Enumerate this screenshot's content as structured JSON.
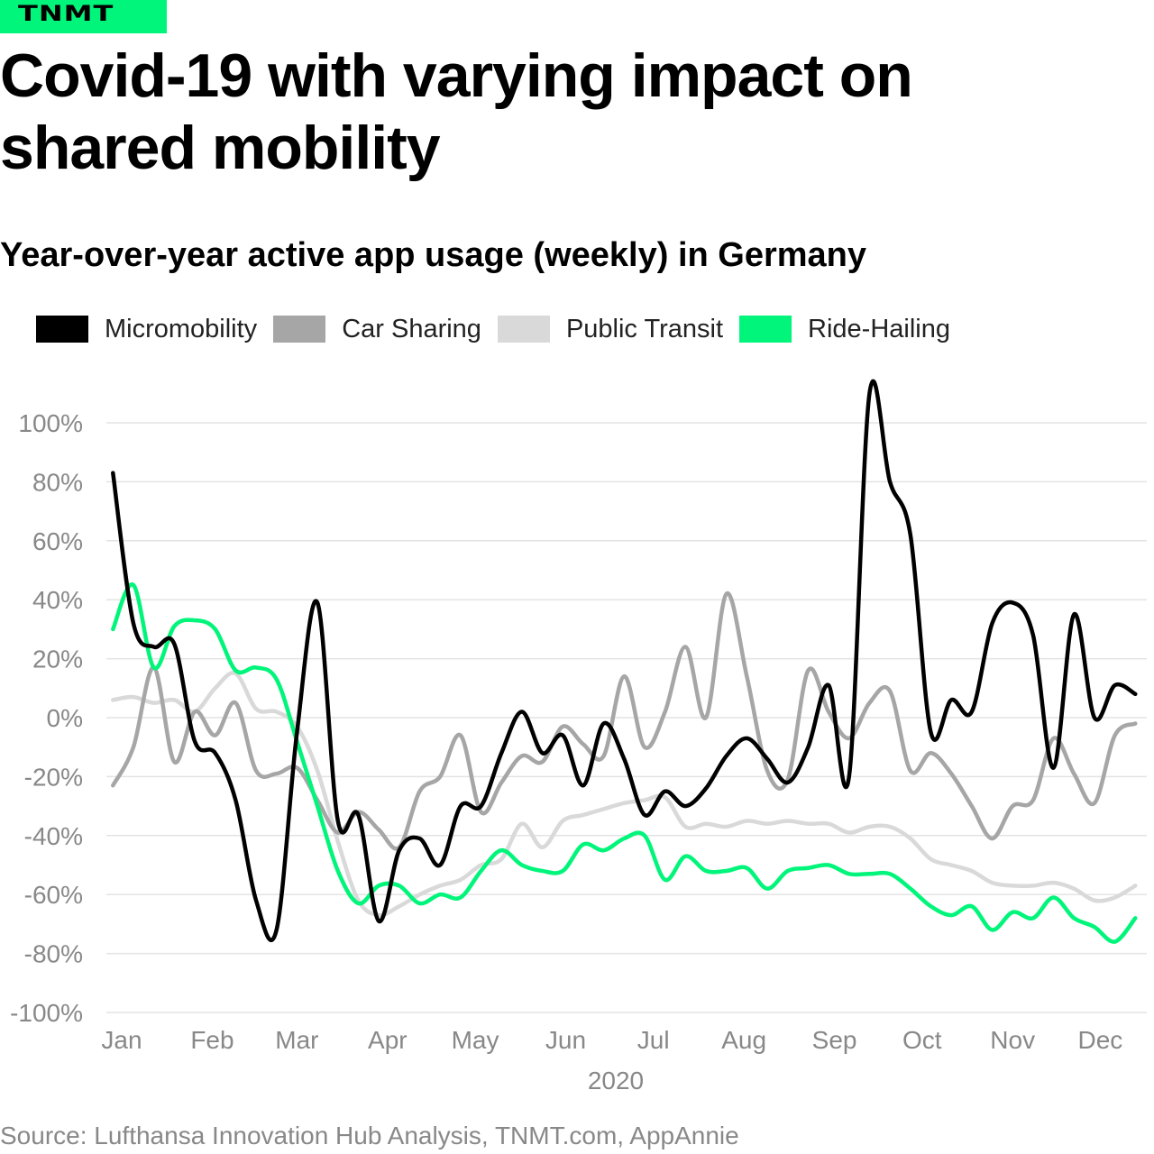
{
  "brand": {
    "logo_text": "TNMT",
    "color": "#00f57a"
  },
  "title": "Covid-19 with varying impact on shared mobility",
  "source": "Source: Lufthansa Innovation Hub Analysis, TNMT.com, AppAnnie",
  "chart_data": {
    "type": "line",
    "title": "Year-over-year active app usage (weekly) in Germany",
    "xlabel": "2020",
    "ylabel": "",
    "ylim": [
      -100,
      100
    ],
    "y_ticks": [
      "100%",
      "80%",
      "60%",
      "40%",
      "20%",
      "0%",
      "-20%",
      "-40%",
      "-60%",
      "-80%",
      "-100%"
    ],
    "y_tick_values": [
      100,
      80,
      60,
      40,
      20,
      0,
      -20,
      -40,
      -60,
      -80,
      -100
    ],
    "x_ticks": [
      "Jan",
      "Feb",
      "Mar",
      "Apr",
      "May",
      "Jun",
      "Jul",
      "Aug",
      "Sep",
      "Oct",
      "Nov",
      "Dec"
    ],
    "x_tick_dates": [
      "2020-01-01",
      "2020-02-01",
      "2020-03-01",
      "2020-04-01",
      "2020-05-01",
      "2020-06-01",
      "2020-07-01",
      "2020-08-01",
      "2020-09-01",
      "2020-10-01",
      "2020-11-01",
      "2020-12-01"
    ],
    "grid": "horizontal",
    "legend_position": "top-left",
    "x": [
      "2019-12-29",
      "2020-01-05",
      "2020-01-12",
      "2020-01-19",
      "2020-01-26",
      "2020-02-02",
      "2020-02-09",
      "2020-02-16",
      "2020-02-23",
      "2020-03-01",
      "2020-03-08",
      "2020-03-15",
      "2020-03-22",
      "2020-03-29",
      "2020-04-05",
      "2020-04-12",
      "2020-04-19",
      "2020-04-26",
      "2020-05-03",
      "2020-05-10",
      "2020-05-17",
      "2020-05-24",
      "2020-05-31",
      "2020-06-07",
      "2020-06-14",
      "2020-06-21",
      "2020-06-28",
      "2020-07-05",
      "2020-07-12",
      "2020-07-19",
      "2020-07-26",
      "2020-08-02",
      "2020-08-09",
      "2020-08-16",
      "2020-08-23",
      "2020-08-30",
      "2020-09-06",
      "2020-09-13",
      "2020-09-20",
      "2020-09-27",
      "2020-10-04",
      "2020-10-11",
      "2020-10-18",
      "2020-10-25",
      "2020-11-01",
      "2020-11-08",
      "2020-11-15",
      "2020-11-22",
      "2020-11-29",
      "2020-12-06",
      "2020-12-13"
    ],
    "series": [
      {
        "name": "Public Transit",
        "color": "#d9d9d9",
        "values": [
          6,
          7,
          5,
          6,
          2,
          10,
          15,
          3,
          2,
          -3,
          -18,
          -42,
          -62,
          -67,
          -64,
          -60,
          -57,
          -55,
          -50,
          -48,
          -36,
          -44,
          -35,
          -33,
          -31,
          -29,
          -28,
          -27,
          -37,
          -36,
          -37,
          -35,
          -36,
          -35,
          -36,
          -36,
          -39,
          -37,
          -37,
          -41,
          -48,
          -50,
          -52,
          -56,
          -57,
          -57,
          -56,
          -58,
          -62,
          -61,
          -57
        ]
      },
      {
        "name": "Car Sharing",
        "color": "#a6a6a6",
        "values": [
          -23,
          -10,
          17,
          -15,
          2,
          -6,
          5,
          -18,
          -19,
          -17,
          -28,
          -39,
          -32,
          -38,
          -44,
          -25,
          -20,
          -6,
          -32,
          -22,
          -13,
          -15,
          -3,
          -9,
          -13,
          14,
          -10,
          2,
          24,
          0,
          42,
          14,
          -18,
          -21,
          16,
          2,
          -7,
          5,
          9,
          -18,
          -12,
          -19,
          -30,
          -41,
          -30,
          -28,
          -7,
          -19,
          -29,
          -6,
          -2
        ]
      },
      {
        "name": "Ride-Hailing",
        "color": "#00f57a",
        "values": [
          30,
          45,
          17,
          31,
          33,
          30,
          16,
          17,
          13,
          -8,
          -30,
          -52,
          -63,
          -57,
          -57,
          -63,
          -60,
          -61,
          -52,
          -45,
          -50,
          -52,
          -52,
          -43,
          -45,
          -41,
          -40,
          -55,
          -47,
          -52,
          -52,
          -51,
          -58,
          -52,
          -51,
          -50,
          -53,
          -53,
          -53,
          -58,
          -64,
          -67,
          -64,
          -72,
          -66,
          -68,
          -61,
          -68,
          -71,
          -76,
          -68
        ]
      },
      {
        "name": "Micromobility",
        "color": "#000000",
        "values": [
          83,
          32,
          24,
          25,
          -8,
          -12,
          -28,
          -62,
          -72,
          -5,
          39,
          -35,
          -33,
          -69,
          -45,
          -41,
          -50,
          -30,
          -30,
          -12,
          2,
          -12,
          -6,
          -23,
          -2,
          -14,
          -33,
          -25,
          -30,
          -24,
          -13,
          -7,
          -14,
          -22,
          -10,
          11,
          -20,
          110,
          80,
          62,
          -5,
          6,
          2,
          32,
          39,
          28,
          -17,
          35,
          0,
          11,
          8
        ]
      }
    ],
    "legend_order": [
      "Micromobility",
      "Car Sharing",
      "Public Transit",
      "Ride-Hailing"
    ]
  }
}
